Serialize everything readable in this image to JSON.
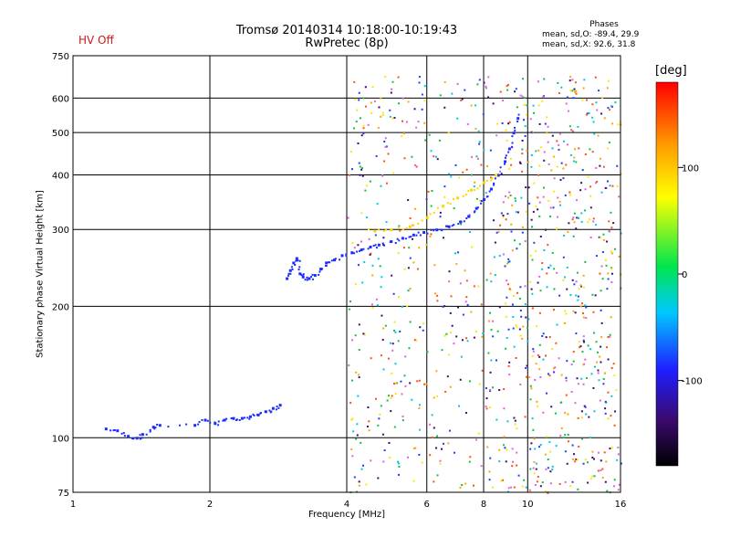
{
  "header": {
    "title_line1": "Tromsø 20140314 10:18:00-10:19:43",
    "title_line2": "RwPretec (8p)",
    "status": "HV Off"
  },
  "phase_box": {
    "title": "Phases",
    "o_line": "mean, sd,O: -89.4, 29.9",
    "x_line": "mean, sd,X:  92.6, 31.8"
  },
  "chart_data": {
    "type": "scatter",
    "xlabel": "Frequency [MHz]",
    "ylabel": "Stationary phase Virtual Height [km]",
    "x_scale": "log",
    "y_scale": "log",
    "xlim": [
      1,
      16
    ],
    "ylim": [
      75,
      750
    ],
    "grid": true,
    "x_ticks": [
      1,
      2,
      4,
      6,
      8,
      10,
      16
    ],
    "y_ticks": [
      75,
      100,
      200,
      300,
      400,
      500,
      600,
      750
    ],
    "x_gridlines": [
      2,
      4,
      6,
      8,
      10
    ],
    "y_gridlines": [
      100,
      200,
      300,
      400,
      500,
      600
    ],
    "colorbar": {
      "label": "[deg]",
      "range": [
        -180,
        180
      ],
      "ticks": [
        100,
        0,
        -100
      ],
      "colormap": "rainbow"
    },
    "traces": [
      {
        "name": "O-mode lower F-layer trace",
        "phase_deg": -90,
        "points": [
          [
            1.18,
            105
          ],
          [
            1.25,
            104
          ],
          [
            1.32,
            101
          ],
          [
            1.38,
            100
          ],
          [
            1.42,
            102
          ],
          [
            1.5,
            106
          ],
          [
            1.55,
            107
          ],
          [
            1.85,
            107
          ],
          [
            1.95,
            110
          ],
          [
            2.05,
            108
          ],
          [
            2.15,
            110
          ],
          [
            2.25,
            111
          ],
          [
            2.35,
            111
          ],
          [
            2.45,
            112
          ],
          [
            2.55,
            113
          ],
          [
            2.65,
            115
          ],
          [
            2.75,
            117
          ],
          [
            2.85,
            119
          ]
        ]
      },
      {
        "name": "O-mode F-layer trace",
        "phase_deg": -90,
        "points": [
          [
            2.95,
            232
          ],
          [
            3.0,
            242
          ],
          [
            3.05,
            252
          ],
          [
            3.1,
            258
          ],
          [
            3.15,
            238
          ],
          [
            3.2,
            234
          ],
          [
            3.3,
            232
          ],
          [
            3.4,
            236
          ],
          [
            3.5,
            244
          ],
          [
            3.6,
            252
          ],
          [
            3.75,
            256
          ],
          [
            3.9,
            262
          ],
          [
            4.1,
            266
          ],
          [
            4.3,
            270
          ],
          [
            4.5,
            274
          ],
          [
            4.7,
            277
          ],
          [
            5.0,
            282
          ],
          [
            5.3,
            287
          ],
          [
            5.6,
            292
          ],
          [
            5.9,
            296
          ],
          [
            6.3,
            300
          ],
          [
            6.7,
            305
          ],
          [
            7.1,
            313
          ],
          [
            7.4,
            322
          ],
          [
            7.7,
            336
          ],
          [
            8.0,
            352
          ],
          [
            8.3,
            372
          ],
          [
            8.6,
            400
          ],
          [
            8.9,
            430
          ],
          [
            9.1,
            460
          ],
          [
            9.3,
            500
          ],
          [
            9.5,
            540
          ]
        ]
      },
      {
        "name": "X-mode trace",
        "phase_deg": 90,
        "points": [
          [
            4.6,
            298
          ],
          [
            5.0,
            300
          ],
          [
            5.5,
            305
          ],
          [
            6.0,
            320
          ],
          [
            6.5,
            340
          ],
          [
            7.0,
            355
          ],
          [
            7.5,
            370
          ],
          [
            8.0,
            385
          ],
          [
            8.5,
            400
          ]
        ]
      }
    ],
    "noise_region_MHz": [
      4,
      16
    ]
  }
}
